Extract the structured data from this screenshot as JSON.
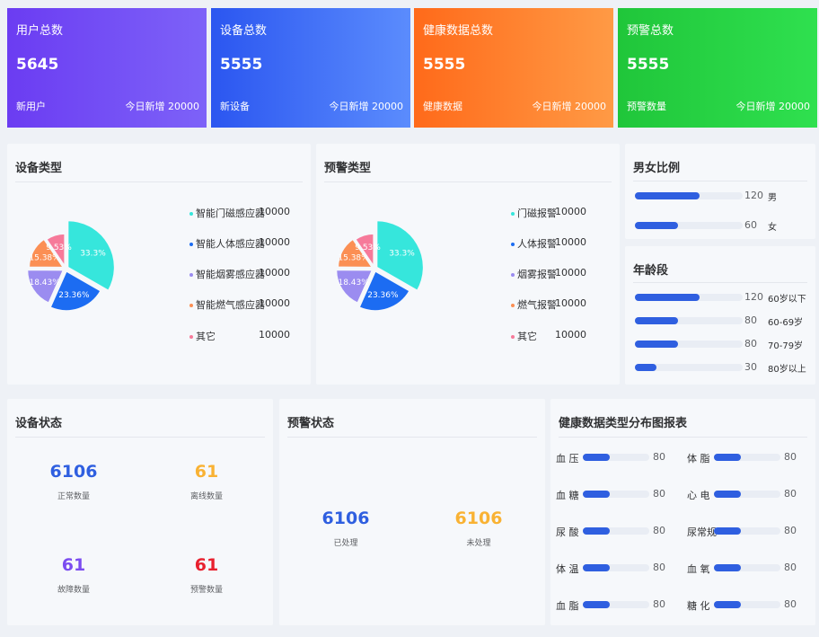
{
  "stats": [
    {
      "title": "用户总数",
      "value": "5645",
      "sub": "新用户",
      "today_label": "今日新增",
      "today_value": "20000",
      "colors": [
        "#6b3cf2",
        "#7d62f8"
      ]
    },
    {
      "title": "设备总数",
      "value": "5555",
      "sub": "新设备",
      "today_label": "今日新增",
      "today_value": "20000",
      "colors": [
        "#2b56f0",
        "#5b8cfd"
      ]
    },
    {
      "title": "健康数据总数",
      "value": "5555",
      "sub": "健康数据",
      "today_label": "今日新增",
      "today_value": "20000",
      "colors": [
        "#ff6a1a",
        "#ff9a45"
      ]
    },
    {
      "title": "预警总数",
      "value": "5555",
      "sub": "预警数量",
      "today_label": "今日新增",
      "today_value": "20000",
      "colors": [
        "#20c63a",
        "#2fe04f"
      ]
    }
  ],
  "device_type": {
    "title": "设备类型",
    "legend": [
      {
        "label": "智能门磁感应器",
        "value": "10000",
        "color": "#36e6dc"
      },
      {
        "label": "智能人体感应器",
        "value": "10000",
        "color": "#1c6cf2"
      },
      {
        "label": "智能烟雾感应器",
        "value": "10000",
        "color": "#9b8cf0"
      },
      {
        "label": "智能燃气感应器",
        "value": "10000",
        "color": "#fb8f54"
      },
      {
        "label": "其它",
        "value": "10000",
        "color": "#f67a9a"
      }
    ]
  },
  "alert_type": {
    "title": "预警类型",
    "legend": [
      {
        "label": "门磁报警",
        "value": "10000",
        "color": "#36e6dc"
      },
      {
        "label": "人体报警",
        "value": "10000",
        "color": "#1c6cf2"
      },
      {
        "label": "烟雾报警",
        "value": "10000",
        "color": "#9b8cf0"
      },
      {
        "label": "燃气报警",
        "value": "10000",
        "color": "#fb8f54"
      },
      {
        "label": "其它",
        "value": "10000",
        "color": "#f67a9a"
      }
    ]
  },
  "chart_data": [
    {
      "type": "pie",
      "title": "设备类型",
      "slices": [
        {
          "label": "智能门磁感应器",
          "percent": 33.3,
          "text": "33.3%",
          "color": "#36e6dc"
        },
        {
          "label": "智能人体感应器",
          "percent": 23.36,
          "text": "23.36%",
          "color": "#1c6cf2"
        },
        {
          "label": "智能烟雾感应器",
          "percent": 18.43,
          "text": "18.43%",
          "color": "#9b8cf0"
        },
        {
          "label": "智能燃气感应器",
          "percent": 15.38,
          "text": "15.38%",
          "color": "#fb8f54"
        },
        {
          "label": "其它",
          "percent": 9.53,
          "text": "9.53%",
          "color": "#f67a9a"
        }
      ]
    },
    {
      "type": "pie",
      "title": "预警类型",
      "slices": [
        {
          "label": "门磁报警",
          "percent": 33.3,
          "text": "33.3%",
          "color": "#36e6dc"
        },
        {
          "label": "人体报警",
          "percent": 23.36,
          "text": "23.36%",
          "color": "#1c6cf2"
        },
        {
          "label": "烟雾报警",
          "percent": 18.43,
          "text": "18.43%",
          "color": "#9b8cf0"
        },
        {
          "label": "燃气报警",
          "percent": 15.38,
          "text": "15.38%",
          "color": "#fb8f54"
        },
        {
          "label": "其它",
          "percent": 9.53,
          "text": "9.53%",
          "color": "#f67a9a"
        }
      ]
    }
  ],
  "gender": {
    "title": "男女比例",
    "rows": [
      {
        "label": "男",
        "value": "120",
        "fraction": 0.6
      },
      {
        "label": "女",
        "value": "60",
        "fraction": 0.4
      }
    ]
  },
  "age": {
    "title": "年龄段",
    "rows": [
      {
        "label": "60岁以下",
        "value": "120",
        "fraction": 0.6
      },
      {
        "label": "60-69岁",
        "value": "80",
        "fraction": 0.4
      },
      {
        "label": "70-79岁",
        "value": "80",
        "fraction": 0.4
      },
      {
        "label": "80岁以上",
        "value": "30",
        "fraction": 0.2
      }
    ]
  },
  "device_status": {
    "title": "设备状态",
    "items": [
      {
        "value": "6106",
        "label": "正常数量",
        "color": "#2f5fe0"
      },
      {
        "value": "61",
        "label": "离线数量",
        "color": "#f9b233"
      },
      {
        "value": "61",
        "label": "故障数量",
        "color": "#7b4cf0"
      },
      {
        "value": "61",
        "label": "预警数量",
        "color": "#e8212f"
      }
    ]
  },
  "alert_status": {
    "title": "预警状态",
    "items": [
      {
        "value": "6106",
        "label": "已处理",
        "color": "#2f5fe0"
      },
      {
        "value": "6106",
        "label": "未处理",
        "color": "#f9b233"
      }
    ]
  },
  "health": {
    "title": "健康数据类型分布图报表",
    "rows": [
      {
        "label": "血 压",
        "value": "80",
        "fraction": 0.4
      },
      {
        "label": "体 脂",
        "value": "80",
        "fraction": 0.4
      },
      {
        "label": "血 糖",
        "value": "80",
        "fraction": 0.4
      },
      {
        "label": "心 电",
        "value": "80",
        "fraction": 0.4
      },
      {
        "label": "尿 酸",
        "value": "80",
        "fraction": 0.4
      },
      {
        "label": "尿常规",
        "value": "80",
        "fraction": 0.4
      },
      {
        "label": "体 温",
        "value": "80",
        "fraction": 0.4
      },
      {
        "label": "血 氧",
        "value": "80",
        "fraction": 0.4
      },
      {
        "label": "血 脂",
        "value": "80",
        "fraction": 0.4
      },
      {
        "label": "糖 化",
        "value": "80",
        "fraction": 0.4
      }
    ]
  }
}
